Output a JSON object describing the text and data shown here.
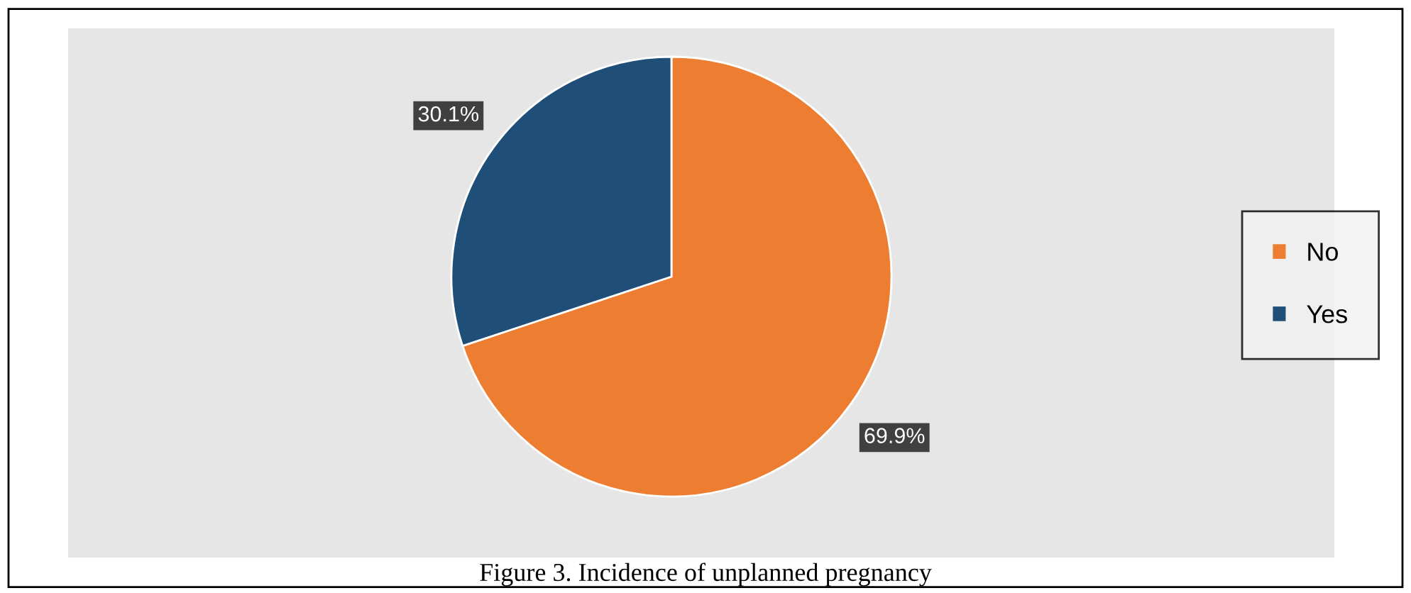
{
  "chart_data": {
    "type": "pie",
    "categories": [
      "No",
      "Yes"
    ],
    "values": [
      69.9,
      30.1
    ],
    "colors": [
      "#ed7d31",
      "#1f4e79"
    ],
    "value_labels": [
      "69.9%",
      "30.1%"
    ],
    "legend": "right",
    "annotations": [
      "Figure 3. Incidence of unplanned pregnancy"
    ]
  }
}
